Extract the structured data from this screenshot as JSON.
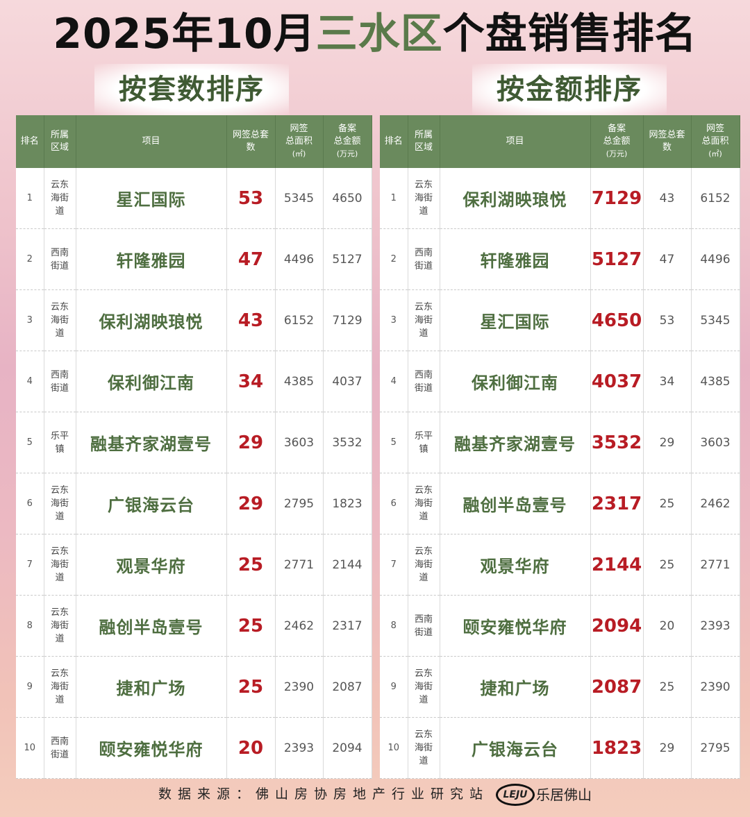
{
  "title": {
    "pre": "2025年10月",
    "highlight": "三水区",
    "post": "个盘销售排名"
  },
  "left_label": "按套数排序",
  "right_label": "按金额排序",
  "left_headers": {
    "rank": "排名",
    "area": [
      "所属",
      "区域"
    ],
    "project": "项目",
    "units": [
      "网签总套",
      "数"
    ],
    "size": [
      "网签",
      "总面积",
      "(㎡)"
    ],
    "amount": [
      "备案",
      "总金额",
      "(万元)"
    ]
  },
  "right_headers": {
    "rank": "排名",
    "area": [
      "所属",
      "区域"
    ],
    "project": "项目",
    "amount": [
      "备案",
      "总金额",
      "(万元)"
    ],
    "units": [
      "网签总套",
      "数"
    ],
    "size": [
      "网签",
      "总面积",
      "(㎡)"
    ]
  },
  "left_rows": [
    {
      "rank": "1",
      "area": [
        "云东",
        "海街",
        "道"
      ],
      "project": "星汇国际",
      "units": "53",
      "size": "5345",
      "amount": "4650"
    },
    {
      "rank": "2",
      "area": [
        "西南",
        "街道"
      ],
      "project": "轩隆雅园",
      "units": "47",
      "size": "4496",
      "amount": "5127"
    },
    {
      "rank": "3",
      "area": [
        "云东",
        "海街",
        "道"
      ],
      "project": "保利湖映琅悦",
      "units": "43",
      "size": "6152",
      "amount": "7129"
    },
    {
      "rank": "4",
      "area": [
        "西南",
        "街道"
      ],
      "project": "保利御江南",
      "units": "34",
      "size": "4385",
      "amount": "4037"
    },
    {
      "rank": "5",
      "area": [
        "乐平",
        "镇"
      ],
      "project": "融基齐家湖壹号",
      "units": "29",
      "size": "3603",
      "amount": "3532"
    },
    {
      "rank": "6",
      "area": [
        "云东",
        "海街",
        "道"
      ],
      "project": "广银海云台",
      "units": "29",
      "size": "2795",
      "amount": "1823"
    },
    {
      "rank": "7",
      "area": [
        "云东",
        "海街",
        "道"
      ],
      "project": "观景华府",
      "units": "25",
      "size": "2771",
      "amount": "2144"
    },
    {
      "rank": "8",
      "area": [
        "云东",
        "海街",
        "道"
      ],
      "project": "融创半岛壹号",
      "units": "25",
      "size": "2462",
      "amount": "2317"
    },
    {
      "rank": "9",
      "area": [
        "云东",
        "海街",
        "道"
      ],
      "project": "捷和广场",
      "units": "25",
      "size": "2390",
      "amount": "2087"
    },
    {
      "rank": "10",
      "area": [
        "西南",
        "街道"
      ],
      "project": "颐安雍悦华府",
      "units": "20",
      "size": "2393",
      "amount": "2094"
    }
  ],
  "right_rows": [
    {
      "rank": "1",
      "area": [
        "云东",
        "海街",
        "道"
      ],
      "project": "保利湖映琅悦",
      "amount": "7129",
      "units": "43",
      "size": "6152"
    },
    {
      "rank": "2",
      "area": [
        "西南",
        "街道"
      ],
      "project": "轩隆雅园",
      "amount": "5127",
      "units": "47",
      "size": "4496"
    },
    {
      "rank": "3",
      "area": [
        "云东",
        "海街",
        "道"
      ],
      "project": "星汇国际",
      "amount": "4650",
      "units": "53",
      "size": "5345"
    },
    {
      "rank": "4",
      "area": [
        "西南",
        "街道"
      ],
      "project": "保利御江南",
      "amount": "4037",
      "units": "34",
      "size": "4385"
    },
    {
      "rank": "5",
      "area": [
        "乐平",
        "镇"
      ],
      "project": "融基齐家湖壹号",
      "amount": "3532",
      "units": "29",
      "size": "3603"
    },
    {
      "rank": "6",
      "area": [
        "云东",
        "海街",
        "道"
      ],
      "project": "融创半岛壹号",
      "amount": "2317",
      "units": "25",
      "size": "2462"
    },
    {
      "rank": "7",
      "area": [
        "云东",
        "海街",
        "道"
      ],
      "project": "观景华府",
      "amount": "2144",
      "units": "25",
      "size": "2771"
    },
    {
      "rank": "8",
      "area": [
        "西南",
        "街道"
      ],
      "project": "颐安雍悦华府",
      "amount": "2094",
      "units": "20",
      "size": "2393"
    },
    {
      "rank": "9",
      "area": [
        "云东",
        "海街",
        "道"
      ],
      "project": "捷和广场",
      "amount": "2087",
      "units": "25",
      "size": "2390"
    },
    {
      "rank": "10",
      "area": [
        "云东",
        "海街",
        "道"
      ],
      "project": "广银海云台",
      "amount": "1823",
      "units": "29",
      "size": "2795"
    }
  ],
  "footer": {
    "source": "数据来源：佛山房协房地产行业研究站",
    "logo_text": "LEJU",
    "brand": "乐居佛山"
  },
  "colors": {
    "header_green": "#6a8a5d",
    "project_green": "#4e6e40",
    "key_red": "#b81c24",
    "title_highlight": "#5a7a4a"
  }
}
